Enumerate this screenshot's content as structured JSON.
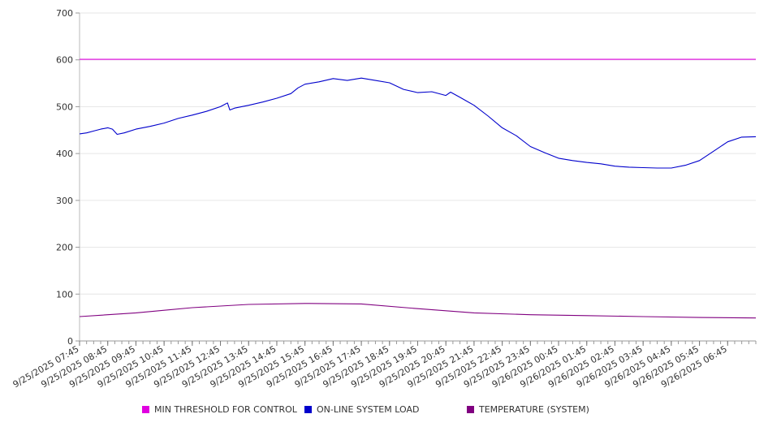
{
  "chart_data": {
    "type": "line",
    "title": "",
    "xlabel": "",
    "ylabel": "",
    "ylim": [
      0,
      700
    ],
    "y_ticks": [
      0,
      100,
      200,
      300,
      400,
      500,
      600,
      700
    ],
    "grid": true,
    "legend_position": "bottom",
    "x_tick_labels": [
      "9/25/2025 07:45",
      "9/25/2025 08:45",
      "9/25/2025 09:45",
      "9/25/2025 10:45",
      "9/25/2025 11:45",
      "9/25/2025 12:45",
      "9/25/2025 13:45",
      "9/25/2025 14:45",
      "9/25/2025 15:45",
      "9/25/2025 16:45",
      "9/25/2025 17:45",
      "9/25/2025 18:45",
      "9/25/2025 19:45",
      "9/25/2025 20:45",
      "9/25/2025 21:45",
      "9/25/2025 22:45",
      "9/25/2025 23:45",
      "9/26/2025 00:45",
      "9/26/2025 01:45",
      "9/26/2025 02:45",
      "9/26/2025 03:45",
      "9/26/2025 04:45",
      "9/26/2025 05:45",
      "9/26/2025 06:45"
    ],
    "series": [
      {
        "name": "MIN THRESHOLD FOR CONTROL",
        "color": "#e000e0",
        "points": [
          [
            "9/25/2025 07:45",
            601
          ],
          [
            "9/26/2025 07:45",
            601
          ]
        ]
      },
      {
        "name": "ON-LINE SYSTEM LOAD",
        "color": "#0000cc",
        "points": [
          [
            "9/25/2025 07:45",
            442
          ],
          [
            "9/25/2025 08:00",
            444
          ],
          [
            "9/25/2025 08:15",
            448
          ],
          [
            "9/25/2025 08:30",
            452
          ],
          [
            "9/25/2025 08:45",
            455
          ],
          [
            "9/25/2025 08:55",
            452
          ],
          [
            "9/25/2025 09:05",
            441
          ],
          [
            "9/25/2025 09:20",
            444
          ],
          [
            "9/25/2025 09:45",
            452
          ],
          [
            "9/25/2025 10:15",
            458
          ],
          [
            "9/25/2025 10:45",
            465
          ],
          [
            "9/25/2025 11:15",
            475
          ],
          [
            "9/25/2025 11:45",
            482
          ],
          [
            "9/25/2025 12:15",
            490
          ],
          [
            "9/25/2025 12:45",
            500
          ],
          [
            "9/25/2025 13:00",
            508
          ],
          [
            "9/25/2025 13:05",
            493
          ],
          [
            "9/25/2025 13:15",
            497
          ],
          [
            "9/25/2025 13:45",
            503
          ],
          [
            "9/25/2025 14:15",
            510
          ],
          [
            "9/25/2025 14:45",
            518
          ],
          [
            "9/25/2025 15:15",
            528
          ],
          [
            "9/25/2025 15:30",
            540
          ],
          [
            "9/25/2025 15:45",
            548
          ],
          [
            "9/25/2025 16:15",
            553
          ],
          [
            "9/25/2025 16:45",
            560
          ],
          [
            "9/25/2025 17:15",
            556
          ],
          [
            "9/25/2025 17:45",
            561
          ],
          [
            "9/25/2025 18:15",
            556
          ],
          [
            "9/25/2025 18:45",
            551
          ],
          [
            "9/25/2025 19:15",
            537
          ],
          [
            "9/25/2025 19:45",
            530
          ],
          [
            "9/25/2025 20:15",
            532
          ],
          [
            "9/25/2025 20:45",
            524
          ],
          [
            "9/25/2025 20:55",
            531
          ],
          [
            "9/25/2025 21:15",
            520
          ],
          [
            "9/25/2025 21:45",
            503
          ],
          [
            "9/25/2025 22:15",
            480
          ],
          [
            "9/25/2025 22:45",
            455
          ],
          [
            "9/25/2025 23:15",
            438
          ],
          [
            "9/25/2025 23:45",
            415
          ],
          [
            "9/26/2025 00:15",
            402
          ],
          [
            "9/26/2025 00:45",
            390
          ],
          [
            "9/26/2025 01:15",
            385
          ],
          [
            "9/26/2025 01:45",
            381
          ],
          [
            "9/26/2025 02:15",
            378
          ],
          [
            "9/26/2025 02:45",
            373
          ],
          [
            "9/26/2025 03:15",
            371
          ],
          [
            "9/26/2025 03:45",
            370
          ],
          [
            "9/26/2025 04:15",
            369
          ],
          [
            "9/26/2025 04:45",
            369
          ],
          [
            "9/26/2025 05:15",
            375
          ],
          [
            "9/26/2025 05:45",
            385
          ],
          [
            "9/26/2025 06:15",
            405
          ],
          [
            "9/26/2025 06:45",
            425
          ],
          [
            "9/26/2025 07:15",
            435
          ],
          [
            "9/26/2025 07:45",
            436
          ]
        ]
      },
      {
        "name": "TEMPERATURE (SYSTEM)",
        "color": "#800080",
        "points": [
          [
            "9/25/2025 07:45",
            52
          ],
          [
            "9/25/2025 09:45",
            60
          ],
          [
            "9/25/2025 11:45",
            71
          ],
          [
            "9/25/2025 13:45",
            78
          ],
          [
            "9/25/2025 15:45",
            80
          ],
          [
            "9/25/2025 17:45",
            79
          ],
          [
            "9/25/2025 19:45",
            69
          ],
          [
            "9/25/2025 21:45",
            60
          ],
          [
            "9/25/2025 23:45",
            56
          ],
          [
            "9/26/2025 01:45",
            54
          ],
          [
            "9/26/2025 03:45",
            52
          ],
          [
            "9/26/2025 05:45",
            50
          ],
          [
            "9/26/2025 07:45",
            49
          ]
        ]
      }
    ]
  },
  "legend": {
    "items": [
      {
        "label": "MIN THRESHOLD FOR CONTROL",
        "color": "#e000e0"
      },
      {
        "label": "ON-LINE SYSTEM LOAD",
        "color": "#0000cc"
      },
      {
        "label": "TEMPERATURE (SYSTEM)",
        "color": "#800080"
      }
    ]
  }
}
